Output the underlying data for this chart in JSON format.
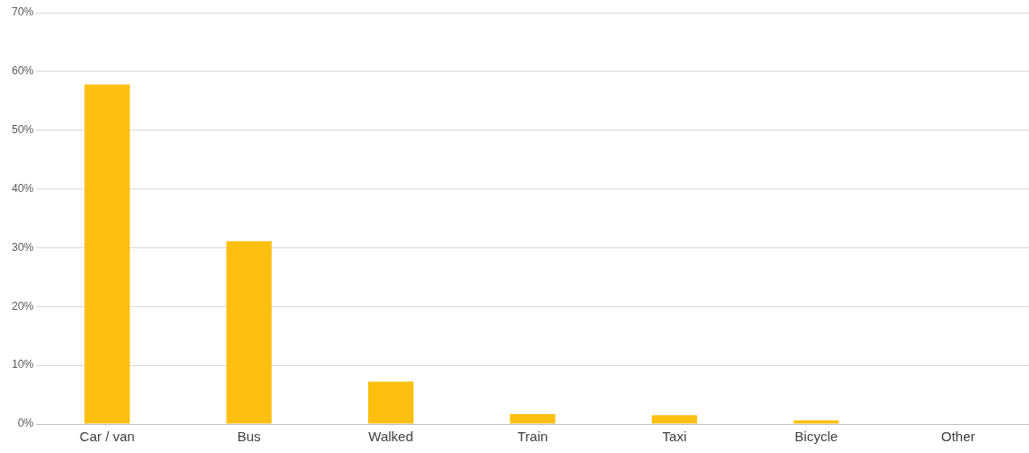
{
  "chart_data": {
    "type": "bar",
    "categories": [
      "Car / van",
      "Bus",
      "Walked",
      "Train",
      "Taxi",
      "Bicycle",
      "Other"
    ],
    "values": [
      57.8,
      31.1,
      7.2,
      1.7,
      1.5,
      0.6,
      0
    ],
    "color": "#fdc010",
    "ylim": [
      0,
      70
    ],
    "yticks": [
      {
        "value": 0,
        "label": "0%"
      },
      {
        "value": 10,
        "label": "10%"
      },
      {
        "value": 20,
        "label": "20%"
      },
      {
        "value": 30,
        "label": "30%"
      },
      {
        "value": 40,
        "label": "40%"
      },
      {
        "value": 50,
        "label": "50%"
      },
      {
        "value": 60,
        "label": "60%"
      },
      {
        "value": 70,
        "label": "70%"
      }
    ],
    "grid": "y"
  }
}
